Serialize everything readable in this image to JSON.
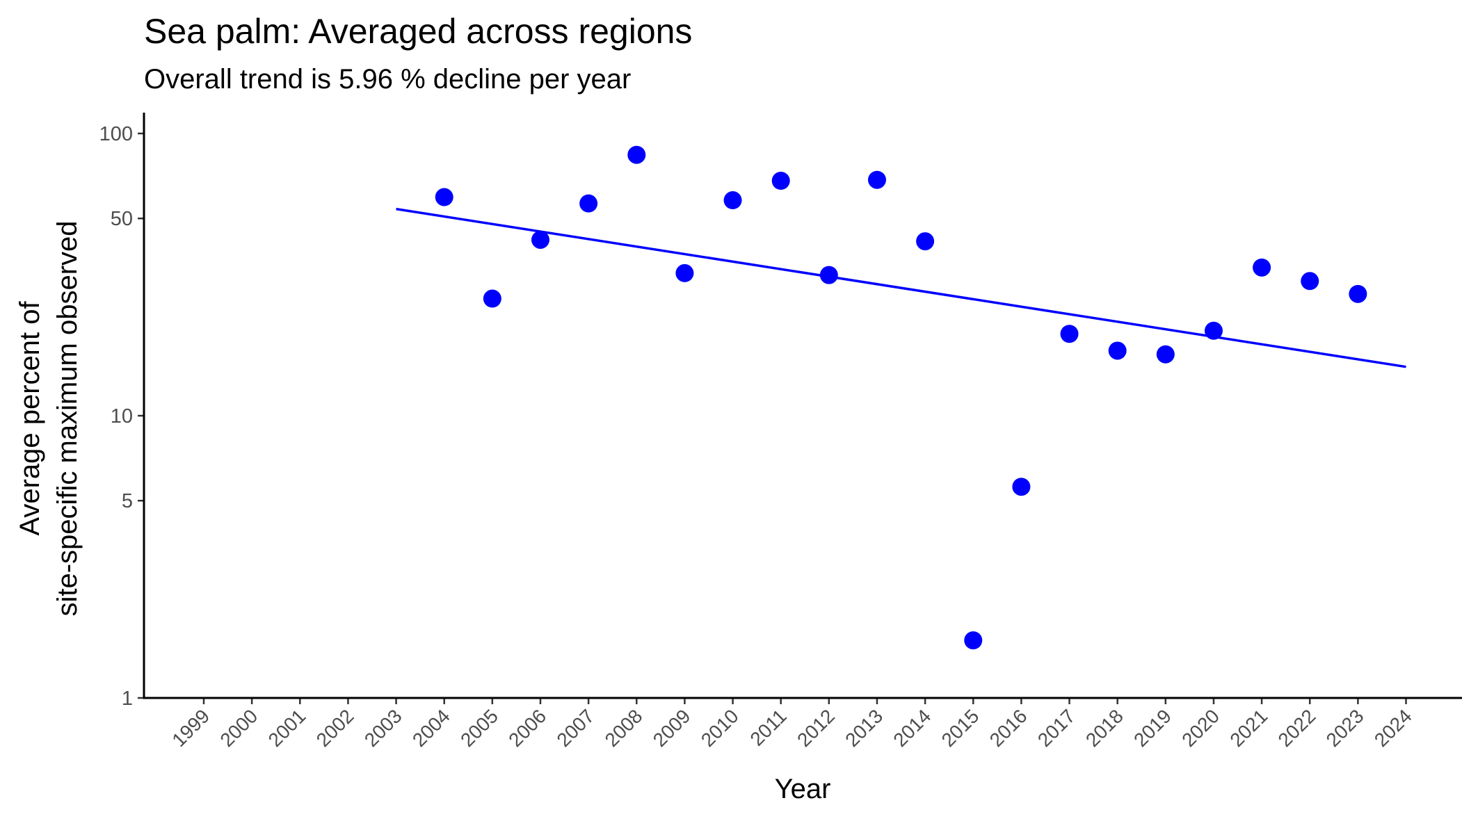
{
  "chart_data": {
    "type": "scatter",
    "title": "Sea palm: Averaged across regions",
    "subtitle": "Overall trend is 5.96 % decline per year",
    "xlabel": "Year",
    "ylabel_line1": "Average percent of",
    "ylabel_line2": "site-specific maximum observed",
    "y_scale": "log10",
    "ylim": [
      1,
      120
    ],
    "y_ticks": [
      1,
      5,
      10,
      50,
      100
    ],
    "y_tick_labels": [
      "1",
      "5",
      "10",
      "50",
      "100"
    ],
    "x_ticks": [
      1999,
      2000,
      2001,
      2002,
      2003,
      2004,
      2005,
      2006,
      2007,
      2008,
      2009,
      2010,
      2011,
      2012,
      2013,
      2014,
      2015,
      2016,
      2017,
      2018,
      2019,
      2020,
      2021,
      2022,
      2023,
      2024
    ],
    "x_tick_labels": [
      "1999",
      "2000",
      "2001",
      "2002",
      "2003",
      "2004",
      "2005",
      "2006",
      "2007",
      "2008",
      "2009",
      "2010",
      "2011",
      "2012",
      "2013",
      "2014",
      "2015",
      "2016",
      "2017",
      "2018",
      "2019",
      "2020",
      "2021",
      "2022",
      "2023",
      "2024"
    ],
    "grid": false,
    "points": {
      "x": [
        2004,
        2005,
        2006,
        2007,
        2008,
        2009,
        2010,
        2011,
        2012,
        2013,
        2014,
        2015,
        2016,
        2017,
        2018,
        2019,
        2020,
        2021,
        2022,
        2023
      ],
      "y": [
        59.5,
        26.0,
        42.0,
        56.5,
        84.0,
        32.0,
        58.0,
        68.0,
        31.5,
        68.5,
        41.5,
        1.6,
        5.6,
        19.5,
        17.0,
        16.5,
        20.0,
        33.5,
        30.0,
        27.0
      ],
      "color": "#0000ff"
    },
    "trend_line": {
      "x": [
        2003,
        2024
      ],
      "y": [
        54.0,
        14.9
      ],
      "color": "#0000ff"
    }
  }
}
